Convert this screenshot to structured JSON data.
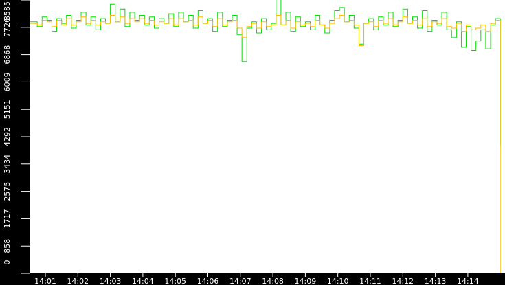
{
  "chart_data": {
    "type": "line",
    "title": "",
    "xlabel": "",
    "ylabel": "",
    "ylim": [
      0,
      8585
    ],
    "y_ticks": [
      "0",
      "858",
      "1717",
      "2575",
      "3434",
      "4292",
      "5151",
      "6009",
      "6868",
      "7726",
      "8585"
    ],
    "x_ticks": [
      "14:01",
      "14:02",
      "14:03",
      "14:04",
      "14:05",
      "14:06",
      "14:07",
      "14:08",
      "14:09",
      "14:10",
      "14:11",
      "14:12",
      "14:13",
      "14:14"
    ],
    "grid": false,
    "colors": {
      "background": "#ffffff",
      "axis_background": "#000000",
      "axis_text": "#ffffff"
    },
    "x": [
      "14:00:36",
      "14:00:45",
      "14:00:54",
      "14:01:03",
      "14:01:12",
      "14:01:21",
      "14:01:30",
      "14:01:39",
      "14:01:48",
      "14:01:57",
      "14:02:06",
      "14:02:15",
      "14:02:24",
      "14:02:33",
      "14:02:42",
      "14:02:51",
      "14:03:00",
      "14:03:09",
      "14:03:18",
      "14:03:27",
      "14:03:36",
      "14:03:45",
      "14:03:54",
      "14:04:03",
      "14:04:12",
      "14:04:21",
      "14:04:30",
      "14:04:39",
      "14:04:48",
      "14:04:57",
      "14:05:06",
      "14:05:15",
      "14:05:24",
      "14:05:33",
      "14:05:42",
      "14:05:51",
      "14:06:00",
      "14:06:09",
      "14:06:18",
      "14:06:27",
      "14:06:36",
      "14:06:45",
      "14:06:54",
      "14:07:03",
      "14:07:12",
      "14:07:21",
      "14:07:30",
      "14:07:39",
      "14:07:48",
      "14:07:57",
      "14:08:06",
      "14:08:15",
      "14:08:24",
      "14:08:33",
      "14:08:42",
      "14:08:51",
      "14:09:00",
      "14:09:09",
      "14:09:18",
      "14:09:27",
      "14:09:36",
      "14:09:45",
      "14:09:54",
      "14:10:03",
      "14:10:12",
      "14:10:21",
      "14:10:30",
      "14:10:39",
      "14:10:48",
      "14:10:57",
      "14:11:06",
      "14:11:15",
      "14:11:24",
      "14:11:33",
      "14:11:42",
      "14:11:51",
      "14:12:00",
      "14:12:09",
      "14:12:18",
      "14:12:27",
      "14:12:36",
      "14:12:45",
      "14:12:54",
      "14:13:03",
      "14:13:12",
      "14:13:21",
      "14:13:30",
      "14:13:39",
      "14:13:48",
      "14:13:57",
      "14:14:06",
      "14:14:15",
      "14:14:24",
      "14:14:33",
      "14:14:42",
      "14:14:51",
      "14:15:00"
    ],
    "series": [
      {
        "color": "#00e000",
        "values": [
          7900,
          7750,
          8050,
          7950,
          7600,
          8000,
          7850,
          8100,
          7700,
          7950,
          8200,
          7800,
          8050,
          7650,
          8000,
          7850,
          8450,
          7900,
          8300,
          7750,
          8200,
          7950,
          8100,
          7800,
          8050,
          7700,
          8000,
          7850,
          8150,
          7750,
          8200,
          7900,
          8100,
          7700,
          8250,
          7850,
          8000,
          7600,
          8200,
          7750,
          7950,
          8100,
          7500,
          6650,
          7700,
          7900,
          7550,
          8000,
          7650,
          7850,
          8600,
          7800,
          8200,
          7600,
          8050,
          7750,
          7900,
          7650,
          8100,
          7800,
          7550,
          7950,
          8250,
          8350,
          7900,
          8100,
          7700,
          7200,
          7850,
          8000,
          7650,
          8050,
          7800,
          8200,
          7750,
          7950,
          8300,
          7850,
          8050,
          7700,
          8250,
          7600,
          7950,
          7800,
          8200,
          7650,
          7400,
          7900,
          7100,
          7750,
          7000,
          7300,
          7650,
          7050,
          7800,
          8000,
          4000
        ]
      },
      {
        "color": "#ffbb00",
        "values": [
          7850,
          7800,
          7950,
          7900,
          7750,
          7950,
          7800,
          8000,
          7800,
          7900,
          8050,
          7850,
          7950,
          7800,
          7900,
          7850,
          8100,
          7900,
          8050,
          7850,
          8000,
          7900,
          8000,
          7850,
          7950,
          7800,
          7900,
          7850,
          8000,
          7800,
          8000,
          7900,
          7950,
          7800,
          8050,
          7850,
          7950,
          7750,
          8000,
          7800,
          7900,
          7950,
          7700,
          7400,
          7750,
          7850,
          7700,
          7900,
          7750,
          7800,
          8100,
          7800,
          7950,
          7700,
          7900,
          7800,
          7850,
          7750,
          7950,
          7800,
          7700,
          7850,
          8000,
          8100,
          7900,
          7950,
          7800,
          7150,
          7850,
          7900,
          7750,
          7950,
          7850,
          8000,
          7800,
          7900,
          8050,
          7850,
          7950,
          7800,
          8000,
          7750,
          7900,
          7850,
          8000,
          7750,
          7700,
          7850,
          7600,
          7800,
          7650,
          7700,
          7800,
          7600,
          7850,
          7950,
          0
        ]
      }
    ]
  }
}
